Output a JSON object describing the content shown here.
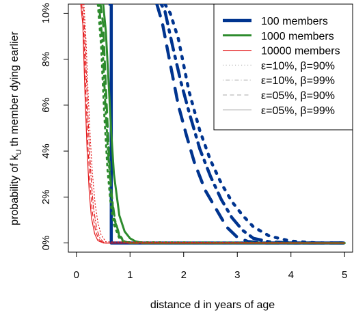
{
  "chart_data": {
    "type": "line",
    "xlabel": "distance d in years of age",
    "ylabel_main": "probability of k",
    "ylabel_sub": "U",
    "ylabel_rest": " th member dying earlier",
    "xlim": [
      -0.15,
      5.15
    ],
    "ylim": [
      -0.4,
      10.4
    ],
    "x_ticks": [
      0,
      1,
      2,
      3,
      4,
      5
    ],
    "x_tick_labels": [
      "0",
      "1",
      "2",
      "3",
      "4",
      "5"
    ],
    "y_ticks": [
      0,
      2,
      4,
      6,
      8,
      10
    ],
    "y_tick_labels": [
      "0%",
      "2%",
      "4%",
      "6%",
      "8%",
      "10%"
    ],
    "legend_position": "top-right",
    "legend": [
      {
        "label": "100 members",
        "color": "#00348f",
        "style": "solid",
        "width": 4.5
      },
      {
        "label": "1000 members",
        "color": "#2d8b2d",
        "style": "solid",
        "width": 3
      },
      {
        "label": "10000 members",
        "color": "#e31a1c",
        "style": "solid",
        "width": 1.2
      },
      {
        "label": "ε=10%, β=90%",
        "color": "#bbbbbb",
        "style": "dotted",
        "width": 1.2
      },
      {
        "label": "ε=10%, β=99%",
        "color": "#bbbbbb",
        "style": "dotdash",
        "width": 1.2
      },
      {
        "label": "ε=05%, β=90%",
        "color": "#bbbbbb",
        "style": "dashed",
        "width": 1.2
      },
      {
        "label": "ε=05%, β=99%",
        "color": "#bbbbbb",
        "style": "solid",
        "width": 1.2
      }
    ],
    "series": [
      {
        "name": "100 members, ε=05%, β=99%",
        "color": "#00348f",
        "style": "solid",
        "width": 4.5,
        "x": [
          0.6,
          0.6,
          0.65,
          0.65,
          5.0
        ],
        "y": [
          10.4,
          10.4,
          10.4,
          0.0,
          0.0
        ]
      },
      {
        "name": "100 members, ε=05%, β=90%",
        "color": "#00348f",
        "style": "dashed",
        "width": 4.5,
        "x": [
          1.5,
          1.6,
          1.75,
          1.9,
          2.05,
          2.2,
          2.4,
          2.6,
          2.8,
          3.0,
          3.2,
          3.5,
          4.0,
          5.0
        ],
        "y": [
          10.4,
          9.6,
          7.8,
          6.0,
          4.7,
          3.5,
          2.3,
          1.5,
          0.7,
          0.25,
          0.06,
          0.0,
          0.0,
          0.0
        ]
      },
      {
        "name": "100 members, ε=10%, β=99%",
        "color": "#00348f",
        "style": "dotdash",
        "width": 4.5,
        "x": [
          1.58,
          1.65,
          1.8,
          1.95,
          2.1,
          2.3,
          2.5,
          2.7,
          2.9,
          3.1,
          3.3,
          3.6,
          4.0,
          5.0
        ],
        "y": [
          10.4,
          10.1,
          8.5,
          7.0,
          5.7,
          4.1,
          2.9,
          1.9,
          1.1,
          0.55,
          0.2,
          0.05,
          0.0,
          0.0
        ]
      },
      {
        "name": "100 members, ε=10%, β=90%",
        "color": "#00348f",
        "style": "dotted",
        "width": 4.5,
        "x": [
          1.65,
          1.75,
          1.9,
          2.1,
          2.3,
          2.5,
          2.7,
          2.9,
          3.1,
          3.3,
          3.6,
          4.0,
          4.5,
          5.0
        ],
        "y": [
          10.4,
          10.0,
          8.9,
          6.6,
          4.9,
          3.6,
          2.6,
          1.8,
          1.2,
          0.7,
          0.3,
          0.08,
          0.0,
          0.0
        ]
      },
      {
        "name": "1000 members, ε=05%, β=99%",
        "color": "#2d8b2d",
        "style": "solid",
        "width": 3,
        "x": [
          0.5,
          0.55,
          0.6,
          0.65,
          0.7,
          0.8,
          0.9,
          1.0,
          1.1,
          1.2,
          1.3,
          5.0
        ],
        "y": [
          10.4,
          9.2,
          7.0,
          4.8,
          3.0,
          1.2,
          0.5,
          0.2,
          0.07,
          0.02,
          0.0,
          0.0
        ]
      },
      {
        "name": "1000 members, ε=05%, β=90%",
        "color": "#2d8b2d",
        "style": "dashed",
        "width": 3,
        "x": [
          0.45,
          0.5,
          0.55,
          0.6,
          0.65,
          0.7,
          0.8,
          0.9,
          1.0,
          5.0
        ],
        "y": [
          10.4,
          9.5,
          6.8,
          4.2,
          2.3,
          1.1,
          0.3,
          0.05,
          0.0,
          0.0
        ]
      },
      {
        "name": "1000 members, ε=10%, β=99%",
        "color": "#2d8b2d",
        "style": "dotdash",
        "width": 3,
        "x": [
          0.42,
          0.48,
          0.54,
          0.6,
          0.66,
          0.72,
          0.8,
          0.9,
          1.0,
          5.0
        ],
        "y": [
          10.4,
          9.0,
          6.0,
          3.6,
          2.0,
          1.0,
          0.35,
          0.06,
          0.0,
          0.0
        ]
      },
      {
        "name": "1000 members, ε=10%, β=90%",
        "color": "#2d8b2d",
        "style": "dotted",
        "width": 3,
        "x": [
          0.4,
          0.46,
          0.52,
          0.58,
          0.64,
          0.7,
          0.8,
          0.9,
          5.0
        ],
        "y": [
          10.4,
          8.6,
          5.6,
          3.2,
          1.7,
          0.8,
          0.2,
          0.03,
          0.0
        ]
      },
      {
        "name": "10000 members, ε=05%, β=99%",
        "color": "#e31a1c",
        "style": "solid",
        "width": 1.2,
        "x": [
          0.08,
          0.12,
          0.16,
          0.2,
          0.24,
          0.28,
          0.34,
          0.4,
          0.5,
          5.0
        ],
        "y": [
          10.4,
          9.5,
          6.5,
          4.0,
          2.2,
          1.1,
          0.4,
          0.1,
          0.0,
          0.0
        ]
      },
      {
        "name": "10000 members, ε=05%, β=90%",
        "color": "#e31a1c",
        "style": "dashed",
        "width": 1.2,
        "x": [
          0.1,
          0.14,
          0.18,
          0.22,
          0.26,
          0.3,
          0.36,
          0.42,
          0.5,
          5.0
        ],
        "y": [
          10.4,
          9.0,
          6.3,
          4.0,
          2.4,
          1.3,
          0.5,
          0.15,
          0.0,
          0.0
        ]
      },
      {
        "name": "10000 members, ε=10%, β=99%",
        "color": "#e31a1c",
        "style": "dotdash",
        "width": 1.2,
        "x": [
          0.12,
          0.16,
          0.2,
          0.24,
          0.28,
          0.32,
          0.38,
          0.44,
          0.52,
          5.0
        ],
        "y": [
          10.4,
          9.0,
          6.4,
          4.2,
          2.6,
          1.5,
          0.6,
          0.2,
          0.0,
          0.0
        ]
      },
      {
        "name": "10000 members, ε=10%, β=90%",
        "color": "#e31a1c",
        "style": "dotted",
        "width": 1.2,
        "x": [
          0.14,
          0.18,
          0.22,
          0.26,
          0.3,
          0.35,
          0.4,
          0.46,
          0.55,
          5.0
        ],
        "y": [
          10.4,
          8.8,
          6.5,
          4.5,
          3.0,
          1.7,
          0.9,
          0.35,
          0.05,
          0.0
        ]
      }
    ]
  }
}
